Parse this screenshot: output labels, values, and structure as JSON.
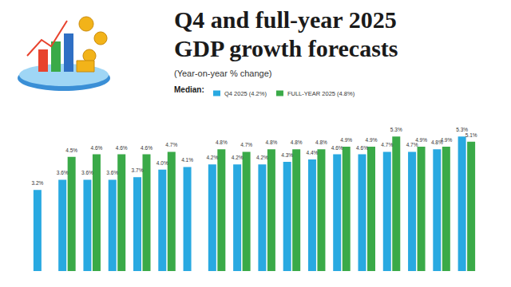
{
  "chart_data": {
    "type": "bar",
    "title": "Q4 and full-year 2025\nGDP growth forecasts",
    "subtitle": "(Year-on-year % change)",
    "legend_title": "Median:",
    "categories": [
      null,
      null,
      null,
      null,
      null,
      null,
      null,
      null,
      null,
      null,
      null,
      null,
      null,
      null,
      null,
      null,
      null,
      null
    ],
    "series": [
      {
        "name": "Q4 2025 (4.2%)",
        "color": "#29a9e1",
        "values": [
          3.2,
          3.6,
          3.6,
          3.6,
          3.7,
          4.0,
          4.1,
          4.2,
          4.2,
          4.2,
          4.3,
          4.4,
          4.6,
          4.6,
          4.7,
          4.7,
          4.8,
          5.3
        ],
        "value_labels": [
          "3.2%",
          "3.6%",
          "3.6%",
          "3.6%",
          "3.7%",
          "4.0%",
          "4.1%",
          "4.2%",
          "4.2%",
          "4.2%",
          "4.3%",
          "4.4%",
          "4.6%",
          "4.6%",
          "4.7%",
          "4.7%",
          "4.8%",
          "5.3%"
        ]
      },
      {
        "name": "FULL-YEAR 2025 (4.8%)",
        "color": "#3aaa48",
        "values": [
          null,
          4.5,
          4.6,
          4.6,
          4.6,
          4.7,
          null,
          4.8,
          4.7,
          4.8,
          4.8,
          4.8,
          4.9,
          4.9,
          5.3,
          4.9,
          4.9,
          5.1
        ],
        "value_labels": [
          null,
          "4.5%",
          "4.6%",
          "4.6%",
          "4.6%",
          "4.7%",
          null,
          "4.8%",
          "4.7%",
          "4.8%",
          "4.8%",
          "4.8%",
          "4.9%",
          "4.9%",
          "5.3%",
          "4.9%",
          "4.9%",
          "5.1%"
        ]
      }
    ],
    "ylim": [
      0,
      6
    ],
    "yticks": [
      0,
      2,
      4,
      6
    ],
    "grid": false,
    "tick_labels": false,
    "data_labels": true,
    "legend": "top"
  }
}
